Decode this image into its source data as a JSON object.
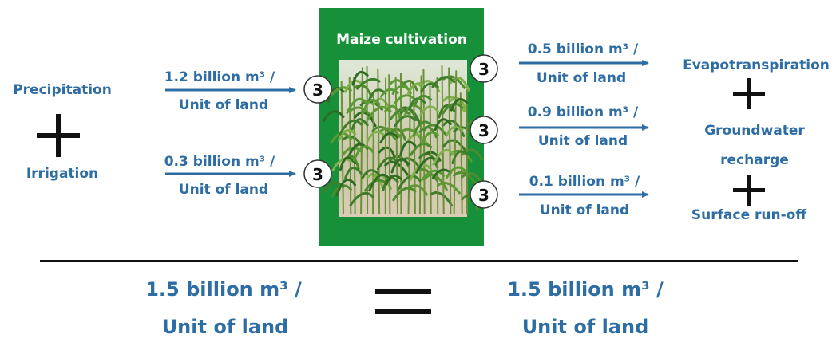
{
  "inputs": [
    "Precipitation",
    "Irrigation"
  ],
  "inflows": [
    {
      "amount": "1.2 billion m³ /",
      "unit": "Unit of land",
      "badge": "3"
    },
    {
      "amount": "0.3 billion m³ /",
      "unit": "Unit of land",
      "badge": "3"
    }
  ],
  "center": {
    "title": "Maize cultivation"
  },
  "outflows": [
    {
      "amount": "0.5 billion m³ /",
      "unit": "Unit of land",
      "badge": "3"
    },
    {
      "amount": "0.9 billion m³ /",
      "unit": "Unit of land",
      "badge": "3"
    },
    {
      "amount": "0.1 billion m³ /",
      "unit": "Unit of land",
      "badge": "3"
    }
  ],
  "outputs": [
    "Evapotranspiration",
    "Groundwater recharge",
    "Surface run-off"
  ],
  "totals": {
    "left": {
      "amount": "1.5 billion m³ /",
      "unit": "Unit of land"
    },
    "right": {
      "amount": "1.5 billion m³ /",
      "unit": "Unit of land"
    }
  }
}
